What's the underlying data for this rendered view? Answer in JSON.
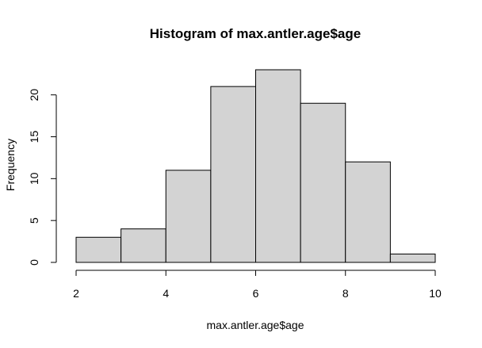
{
  "chart_data": {
    "type": "bar",
    "title": "Histogram of max.antler.age$age",
    "xlabel": "max.antler.age$age",
    "ylabel": "Frequency",
    "bins": [
      {
        "start": 2,
        "end": 3,
        "value": 3
      },
      {
        "start": 3,
        "end": 4,
        "value": 4
      },
      {
        "start": 4,
        "end": 5,
        "value": 11
      },
      {
        "start": 5,
        "end": 6,
        "value": 21
      },
      {
        "start": 6,
        "end": 7,
        "value": 23
      },
      {
        "start": 7,
        "end": 8,
        "value": 19
      },
      {
        "start": 8,
        "end": 9,
        "value": 12
      },
      {
        "start": 9,
        "end": 10,
        "value": 1
      }
    ],
    "xlim": [
      2,
      10
    ],
    "ylim": [
      0,
      23
    ],
    "x_ticks": [
      2,
      4,
      6,
      8,
      10
    ],
    "y_ticks": [
      0,
      5,
      10,
      15,
      20
    ],
    "bar_fill": "#d3d3d3",
    "bar_stroke": "#000000",
    "grid": false
  }
}
